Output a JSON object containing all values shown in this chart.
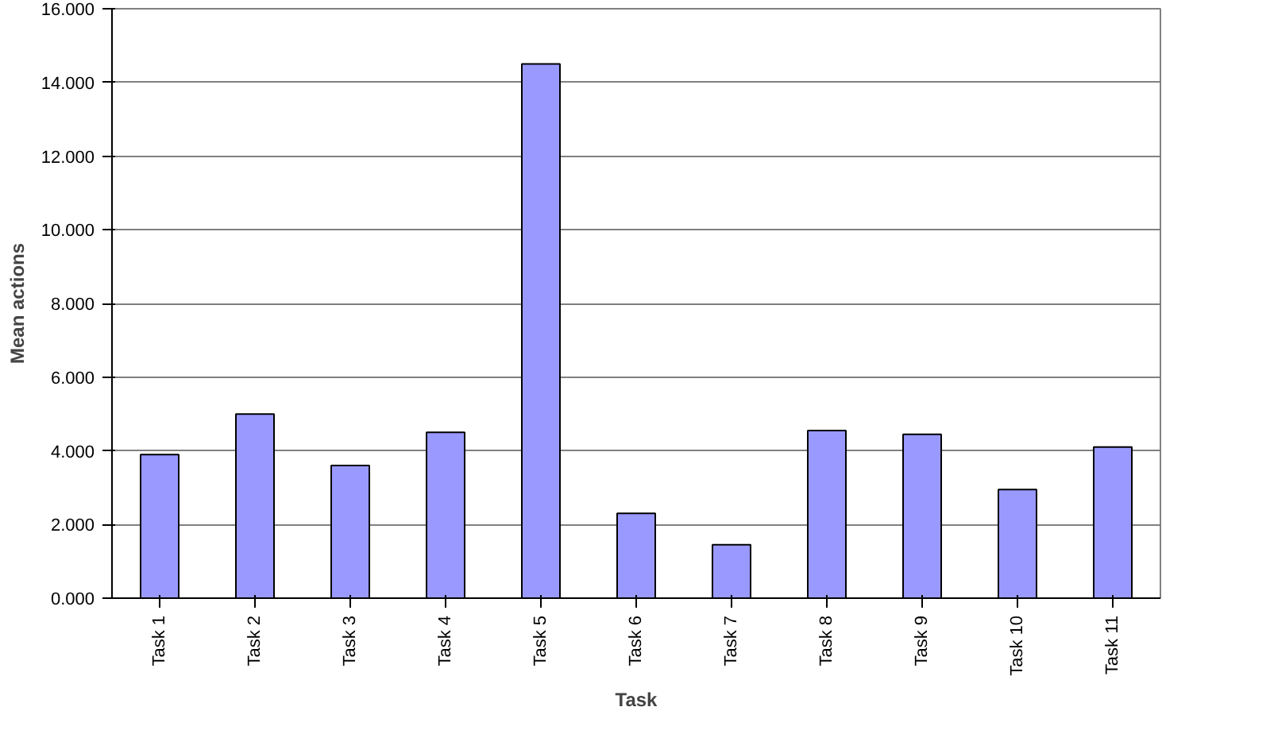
{
  "chart_data": {
    "type": "bar",
    "xlabel": "Task",
    "ylabel": "Mean actions",
    "categories": [
      "Task 1",
      "Task 2",
      "Task 3",
      "Task 4",
      "Task 5",
      "Task 6",
      "Task 7",
      "Task 8",
      "Task 9",
      "Task 10",
      "Task 11"
    ],
    "values": [
      3.9,
      5.0,
      3.6,
      4.5,
      14.5,
      2.3,
      1.45,
      4.55,
      4.45,
      2.95,
      4.1
    ],
    "color": "#9999ff",
    "ylim": [
      0,
      16
    ],
    "yticks": [
      {
        "value": 0,
        "label": "0.000"
      },
      {
        "value": 2,
        "label": "2.000"
      },
      {
        "value": 4,
        "label": "4.000"
      },
      {
        "value": 6,
        "label": "6.000"
      },
      {
        "value": 8,
        "label": "8.000"
      },
      {
        "value": 10,
        "label": "10.000"
      },
      {
        "value": 12,
        "label": "12.000"
      },
      {
        "value": 14,
        "label": "14.000"
      },
      {
        "value": 16,
        "label": "16.000"
      }
    ],
    "grid": "y",
    "legend": false
  }
}
